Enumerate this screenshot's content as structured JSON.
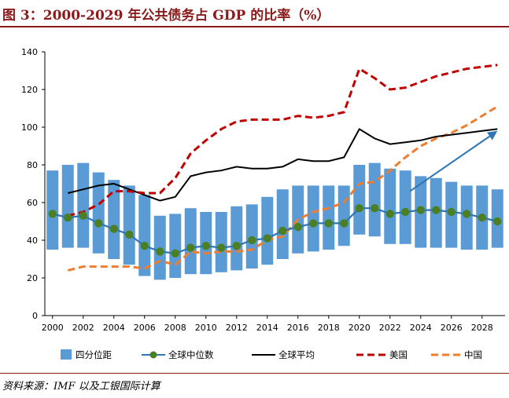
{
  "figure": {
    "title": "图 3：2000-2029 年公共债务占 GDP 的比率（%）",
    "source": "资料来源：IMF 以及工银国际计算"
  },
  "colors": {
    "title": "#8b1a1a",
    "band": "#5b9bd5",
    "median": "#2e75b6",
    "median_marker": "#4a7f23",
    "global_avg": "#000000",
    "usa": "#c00000",
    "china": "#ed7d31",
    "arrow": "#2e75b6"
  },
  "chart_data": {
    "type": "line",
    "title": "2000-2029 年公共债务占 GDP 的比率（%）",
    "x": [
      2000,
      2001,
      2002,
      2003,
      2004,
      2005,
      2006,
      2007,
      2008,
      2009,
      2010,
      2011,
      2012,
      2013,
      2014,
      2015,
      2016,
      2017,
      2018,
      2019,
      2020,
      2021,
      2022,
      2023,
      2024,
      2025,
      2026,
      2027,
      2028,
      2029
    ],
    "x_tick_labels": [
      "2000",
      "2002",
      "2004",
      "2006",
      "2008",
      "2010",
      "2012",
      "2014",
      "2016",
      "2018",
      "2020",
      "2022",
      "2024",
      "2026",
      "2028"
    ],
    "ylim": [
      0,
      140
    ],
    "y_ticks": [
      "0",
      "20",
      "40",
      "60",
      "80",
      "100",
      "120",
      "140"
    ],
    "legend_position": "bottom",
    "series": [
      {
        "name": "四分位距",
        "kind": "range-bar",
        "low": [
          35,
          36,
          36,
          33,
          30,
          27,
          21,
          19,
          20,
          22,
          22,
          23,
          24,
          25,
          27,
          30,
          33,
          34,
          35,
          37,
          43,
          42,
          38,
          38,
          36,
          36,
          36,
          35,
          35,
          36
        ],
        "high": [
          77,
          80,
          81,
          76,
          72,
          69,
          64,
          53,
          54,
          57,
          55,
          55,
          58,
          59,
          63,
          67,
          69,
          69,
          69,
          69,
          80,
          81,
          78,
          77,
          74,
          73,
          71,
          69,
          69,
          67
        ]
      },
      {
        "name": "全球中位数",
        "kind": "line-marker",
        "values": [
          54,
          52,
          53,
          49,
          46,
          43,
          37,
          34,
          33,
          36,
          37,
          36,
          37,
          40,
          41,
          45,
          47,
          49,
          49,
          49,
          57,
          57,
          54,
          55,
          56,
          56,
          55,
          54,
          52,
          50
        ]
      },
      {
        "name": "全球平均",
        "kind": "line",
        "values": [
          null,
          65,
          67,
          69,
          70,
          67,
          64,
          61,
          63,
          74,
          76,
          77,
          79,
          78,
          78,
          79,
          83,
          82,
          82,
          84,
          99,
          94,
          91,
          92,
          93,
          95,
          96,
          97,
          98,
          99
        ]
      },
      {
        "name": "美国",
        "kind": "dashed",
        "values": [
          null,
          53,
          55,
          59,
          66,
          66,
          65,
          65,
          73,
          86,
          93,
          99,
          103,
          104,
          104,
          104,
          106,
          105,
          106,
          108,
          131,
          126,
          120,
          121,
          124,
          127,
          129,
          131,
          132,
          133
        ]
      },
      {
        "name": "中国",
        "kind": "dashed",
        "values": [
          null,
          24,
          26,
          26,
          26,
          26,
          25,
          29,
          27,
          34,
          33,
          34,
          34,
          35,
          40,
          42,
          51,
          55,
          57,
          60,
          70,
          71,
          77,
          84,
          90,
          94,
          97,
          101,
          106,
          111
        ]
      }
    ],
    "annotations": [
      {
        "kind": "trend-arrow",
        "from": [
          2023.3,
          66
        ],
        "to": [
          2029,
          98
        ]
      }
    ]
  }
}
